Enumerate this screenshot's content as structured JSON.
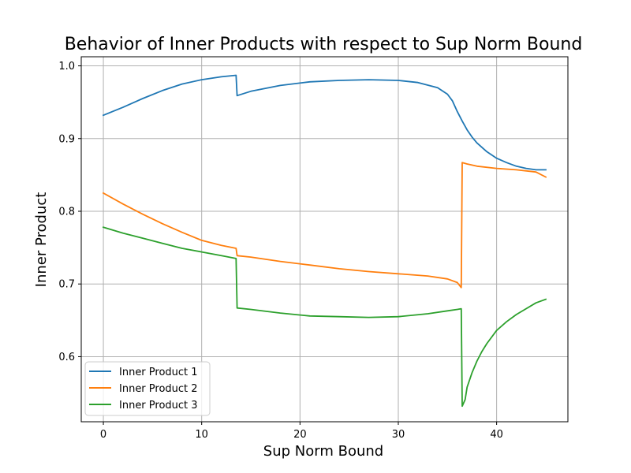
{
  "chart_data": {
    "type": "line",
    "title": "Behavior of Inner Products with respect to Sup Norm Bound",
    "xlabel": "Sup Norm Bound",
    "ylabel": "Inner Product",
    "xlim": [
      -2.25,
      47.25
    ],
    "ylim": [
      0.5105,
      1.0125
    ],
    "xticks": [
      0,
      10,
      20,
      30,
      40
    ],
    "yticks": [
      0.6,
      0.7,
      0.8,
      0.9,
      1.0
    ],
    "xtick_labels": [
      "0",
      "10",
      "20",
      "30",
      "40"
    ],
    "ytick_labels": [
      "0.6",
      "0.7",
      "0.8",
      "0.9",
      "1.0"
    ],
    "grid": true,
    "legend_position": "lower-left",
    "series": [
      {
        "name": "Inner Product 1",
        "color": "#1f77b4",
        "x": [
          0,
          2,
          4,
          6,
          8,
          10,
          12,
          13.5,
          13.6,
          15,
          18,
          21,
          24,
          27,
          30,
          32,
          34,
          35,
          35.5,
          36,
          36.5,
          37,
          37.5,
          38,
          39,
          40,
          41,
          42,
          43,
          44,
          45
        ],
        "y": [
          0.932,
          0.943,
          0.955,
          0.966,
          0.975,
          0.981,
          0.985,
          0.987,
          0.959,
          0.965,
          0.973,
          0.978,
          0.98,
          0.981,
          0.98,
          0.977,
          0.97,
          0.961,
          0.952,
          0.937,
          0.924,
          0.912,
          0.902,
          0.894,
          0.882,
          0.873,
          0.867,
          0.862,
          0.859,
          0.857,
          0.857
        ]
      },
      {
        "name": "Inner Product 2",
        "color": "#ff7f0e",
        "x": [
          0,
          2,
          4,
          6,
          8,
          10,
          12,
          13.5,
          13.6,
          15,
          18,
          21,
          24,
          27,
          30,
          33,
          35,
          36,
          36.4,
          36.5,
          37,
          38,
          40,
          42,
          44,
          45
        ],
        "y": [
          0.825,
          0.81,
          0.796,
          0.783,
          0.771,
          0.76,
          0.753,
          0.749,
          0.739,
          0.737,
          0.731,
          0.726,
          0.721,
          0.717,
          0.714,
          0.711,
          0.707,
          0.702,
          0.695,
          0.867,
          0.865,
          0.862,
          0.859,
          0.857,
          0.854,
          0.847
        ]
      },
      {
        "name": "Inner Product 3",
        "color": "#2ca02c",
        "x": [
          0,
          2,
          4,
          6,
          8,
          10,
          12,
          13.5,
          13.6,
          15,
          18,
          21,
          24,
          27,
          30,
          33,
          35,
          36,
          36.4,
          36.5,
          36.8,
          37,
          37.5,
          38,
          38.5,
          39,
          40,
          41,
          42,
          43,
          44,
          45
        ],
        "y": [
          0.778,
          0.77,
          0.763,
          0.756,
          0.749,
          0.744,
          0.739,
          0.735,
          0.667,
          0.665,
          0.66,
          0.656,
          0.655,
          0.654,
          0.655,
          0.659,
          0.663,
          0.665,
          0.666,
          0.532,
          0.541,
          0.558,
          0.578,
          0.594,
          0.607,
          0.618,
          0.636,
          0.648,
          0.658,
          0.666,
          0.674,
          0.679
        ]
      }
    ]
  }
}
